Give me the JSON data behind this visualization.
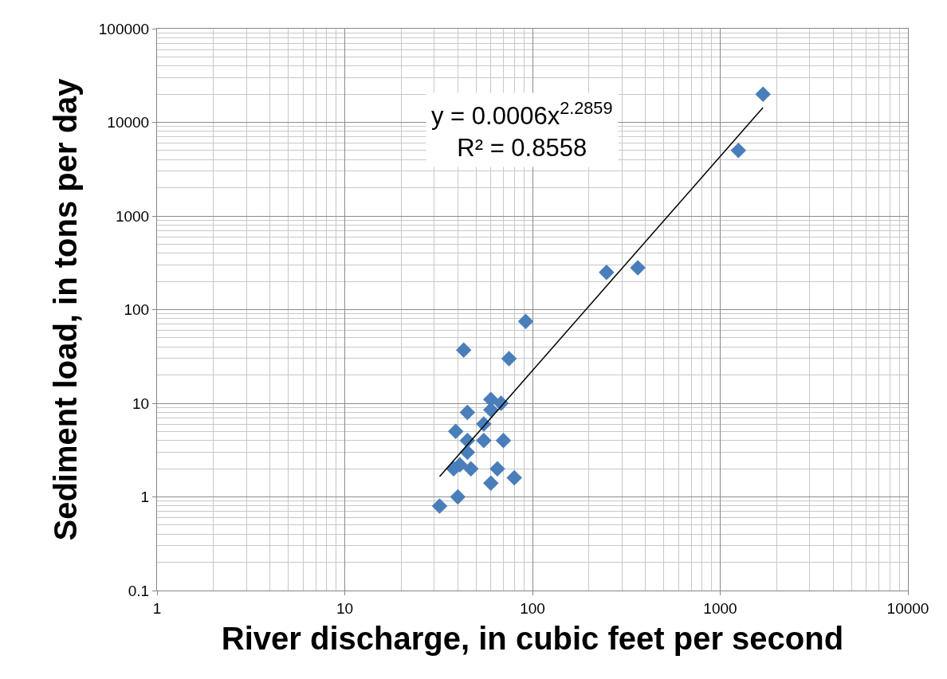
{
  "chart_data": {
    "type": "scatter",
    "xlabel": "River discharge, in cubic feet per second",
    "ylabel": "Sediment load, in tons per day",
    "annotations": [
      "y = 0.0006x$^{2.2859}$",
      "R² = 0.8558"
    ],
    "log": "xy",
    "grid": true,
    "marker": "diamond",
    "xlim": [
      1,
      10000
    ],
    "xticks": [
      1,
      10,
      100,
      1000,
      10000
    ],
    "ylim": [
      0.1,
      100000
    ],
    "yticks": [
      0.1,
      1,
      10,
      100,
      1000,
      10000,
      100000
    ],
    "series": [
      {
        "color": "#4a7ebb",
        "x": [
          32,
          40,
          38,
          41,
          47,
          45,
          39,
          45,
          55,
          70,
          45,
          55,
          60,
          60,
          68,
          65,
          60,
          80,
          43,
          75,
          92,
          248,
          364,
          1250,
          1690
        ],
        "values": [
          0.8,
          1,
          2,
          2.2,
          2,
          3,
          5,
          4,
          4,
          4,
          8,
          6,
          11,
          8.5,
          10,
          2,
          1.4,
          1.6,
          37,
          30,
          75,
          250,
          280,
          5000,
          20000
        ]
      },
      {
        "type": "line",
        "color": "#000000",
        "marker": "none",
        "x": [
          32,
          1690
        ],
        "values": [
          1.65,
          14360
        ]
      }
    ]
  }
}
